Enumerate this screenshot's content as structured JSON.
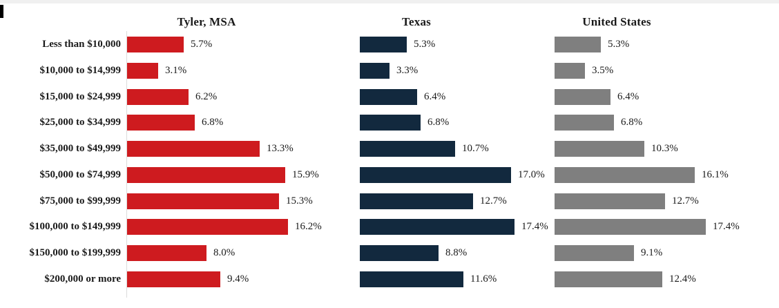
{
  "decorations": {
    "top_strip_color": "#f0f0f0",
    "corner_mark_color": "#000000",
    "axis_line_color": "#dcdcdc",
    "text_color": "#1a1a1a",
    "background_color": "#ffffff"
  },
  "chart_data": {
    "type": "bar",
    "orientation": "horizontal",
    "title": "",
    "xlabel": "",
    "ylabel": "",
    "xlim": [
      0,
      18
    ],
    "grid": false,
    "legend_position": "panel-titles",
    "value_label_format": "0.0%",
    "categories": [
      "Less than $10,000",
      "$10,000 to $14,999",
      "$15,000 to $24,999",
      "$25,000 to $34,999",
      "$35,000 to $49,999",
      "$50,000 to $74,999",
      "$75,000 to $99,999",
      "$100,000 to $149,999",
      "$150,000 to $199,999",
      "$200,000 or more"
    ],
    "series": [
      {
        "name": "Tyler, MSA",
        "color": "#ce1b1f",
        "values": [
          5.7,
          3.1,
          6.2,
          6.8,
          13.3,
          15.9,
          15.3,
          16.2,
          8.0,
          9.4
        ],
        "labels": [
          "5.7%",
          "3.1%",
          "6.2%",
          "6.8%",
          "13.3%",
          "15.9%",
          "15.3%",
          "16.2%",
          "8.0%",
          "9.4%"
        ]
      },
      {
        "name": "Texas",
        "color": "#12293e",
        "values": [
          5.3,
          3.3,
          6.4,
          6.8,
          10.7,
          17.0,
          12.7,
          17.4,
          8.8,
          11.6
        ],
        "labels": [
          "5.3%",
          "3.3%",
          "6.4%",
          "6.8%",
          "10.7%",
          "17.0%",
          "12.7%",
          "17.4%",
          "8.8%",
          "11.6%"
        ]
      },
      {
        "name": "United States",
        "color": "#7f7f7f",
        "values": [
          5.3,
          3.5,
          6.4,
          6.8,
          10.3,
          16.1,
          12.7,
          17.4,
          9.1,
          12.4
        ],
        "labels": [
          "5.3%",
          "3.5%",
          "6.4%",
          "6.8%",
          "10.3%",
          "16.1%",
          "12.7%",
          "17.4%",
          "9.1%",
          "12.4%"
        ]
      }
    ]
  }
}
